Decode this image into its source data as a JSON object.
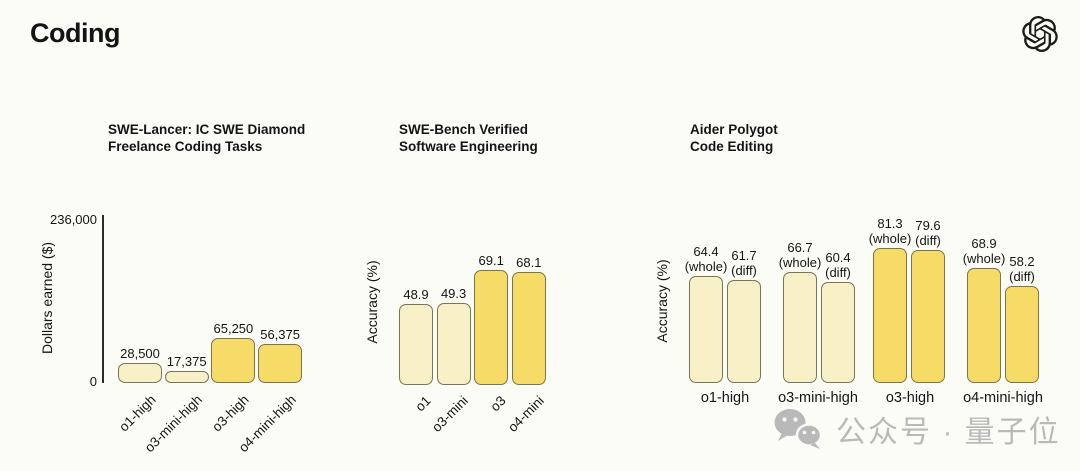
{
  "page_title": "Coding",
  "header": {
    "logo": "openai-logo"
  },
  "colors": {
    "background": "#FCFCF7",
    "bar_light": "#F8F1C8",
    "bar_dark": "#F6DC66",
    "bar_border": "#7A7452",
    "axis": "#2B2B2B",
    "text": "#141414",
    "watermark": "#B9B9B9"
  },
  "watermark": {
    "icon": "wechat-icon",
    "text": "公众号 · 量子位"
  },
  "chart_data": [
    {
      "type": "bar",
      "title_lines": [
        "SWE-Lancer: IC SWE Diamond",
        "Freelance Coding Tasks"
      ],
      "ylabel": "Dollars earned ($)",
      "ylim": [
        0,
        236000
      ],
      "yticks": [
        "236,000",
        "0"
      ],
      "categories": [
        "o1-high",
        "o3-mini-high",
        "o3-high",
        "o4-mini-high"
      ],
      "values": [
        28500,
        17375,
        65250,
        56375
      ],
      "value_labels": [
        "28,500",
        "17,375",
        "65,250",
        "56,375"
      ],
      "bar_styles": [
        "light",
        "light",
        "dark",
        "dark"
      ],
      "x_tick_rotation": 45,
      "grid": false,
      "legend": "none"
    },
    {
      "type": "bar",
      "title_lines": [
        "SWE-Bench Verified",
        "Software Engineering"
      ],
      "ylabel": "Accuracy (%)",
      "ylim": [
        0,
        100
      ],
      "yticks": [],
      "categories": [
        "o1",
        "o3-mini",
        "o3",
        "o4-mini"
      ],
      "values": [
        48.9,
        49.3,
        69.1,
        68.1
      ],
      "value_labels": [
        "48.9",
        "49.3",
        "69.1",
        "68.1"
      ],
      "bar_styles": [
        "light",
        "light",
        "dark",
        "dark"
      ],
      "x_tick_rotation": 45,
      "grid": false,
      "legend": "none"
    },
    {
      "type": "grouped-bar",
      "title_lines": [
        "Aider Polygot",
        "Code Editing"
      ],
      "ylabel": "Accuracy (%)",
      "ylim": [
        0,
        100
      ],
      "yticks": [],
      "categories": [
        "o1-high",
        "o3-mini-high",
        "o3-high",
        "o4-mini-high"
      ],
      "series": [
        {
          "name": "whole",
          "suffix": "(whole)",
          "values": [
            64.4,
            66.7,
            81.3,
            68.9
          ],
          "value_labels": [
            "64.4",
            "66.7",
            "81.3",
            "68.9"
          ]
        },
        {
          "name": "diff",
          "suffix": "(diff)",
          "values": [
            61.7,
            60.4,
            79.6,
            58.2
          ],
          "value_labels": [
            "61.7",
            "60.4",
            "79.6",
            "58.2"
          ]
        }
      ],
      "bar_styles": [
        "light",
        "light",
        "dark",
        "dark"
      ],
      "x_tick_rotation": 0,
      "grid": false,
      "legend": "none"
    }
  ]
}
